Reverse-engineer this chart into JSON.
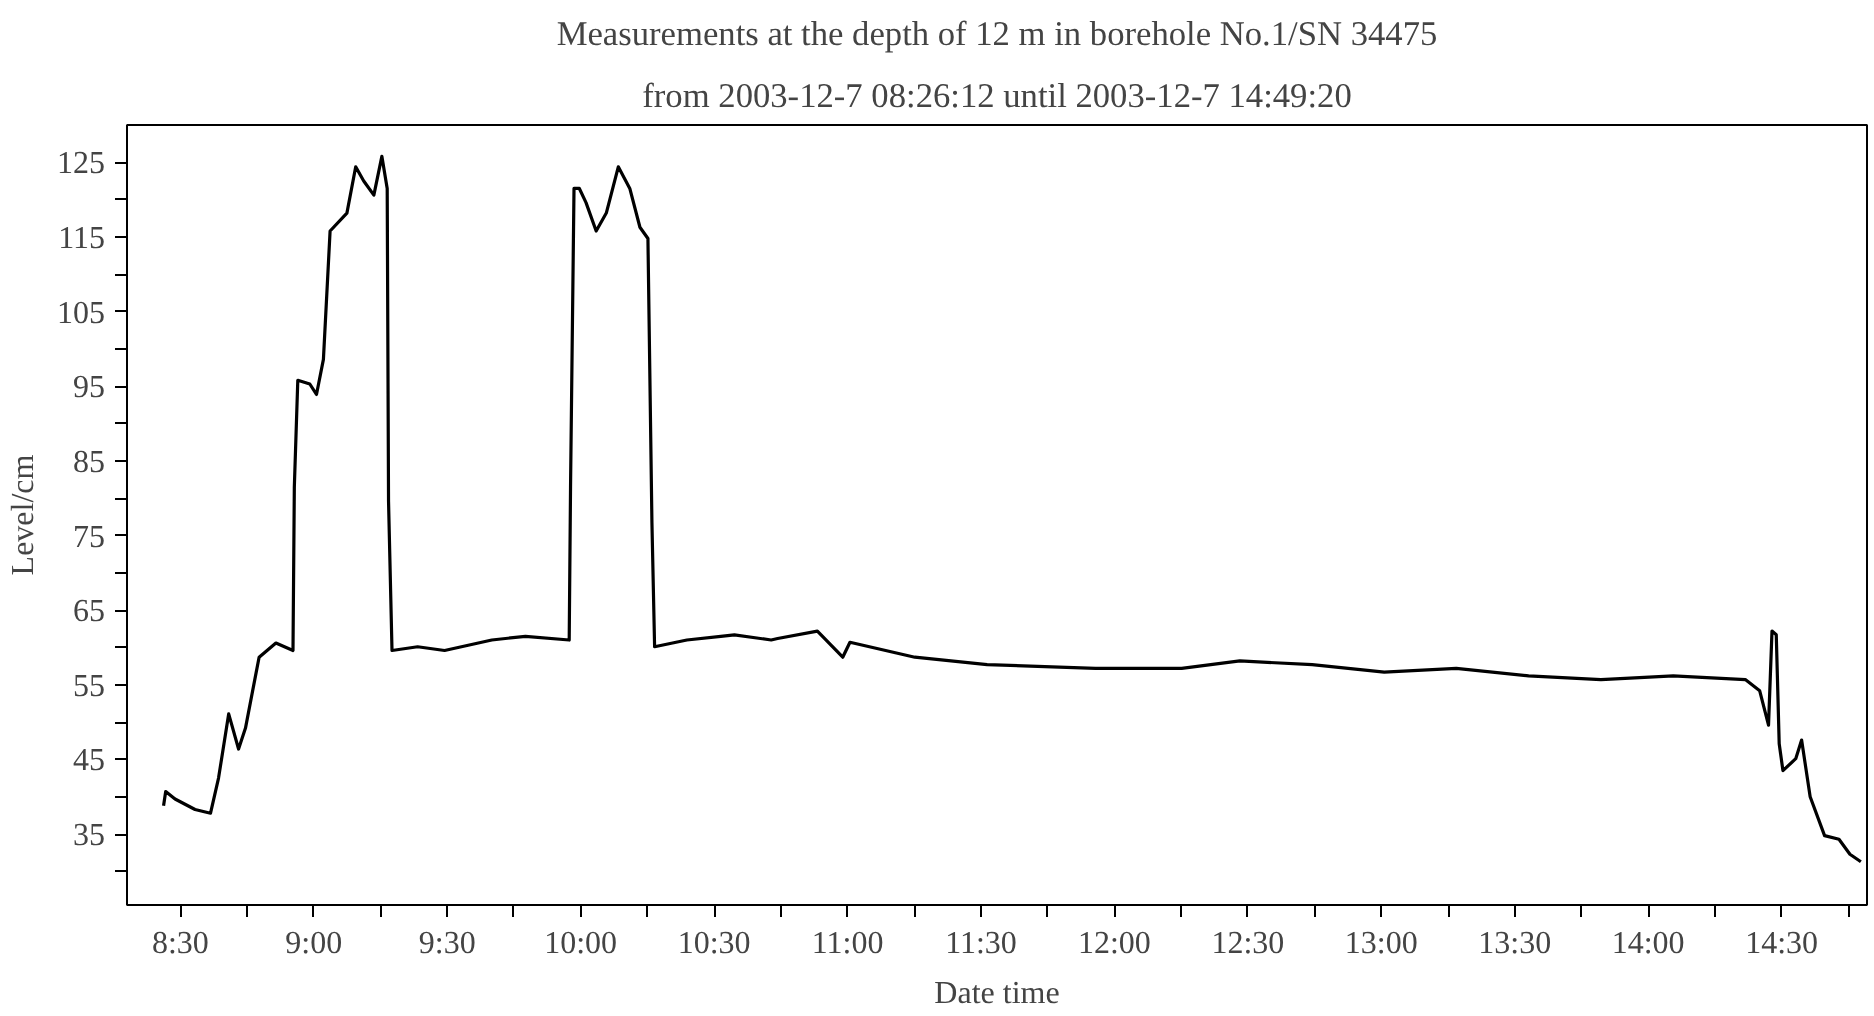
{
  "chart_data": {
    "type": "line",
    "title": "Measurements at the depth of 12 m in borehole No.1/SN 34475",
    "subtitle": "from 2003-12-7 08:26:12 until 2003-12-7 14:49:20",
    "xlabel": "Date time",
    "ylabel": "Level/cm",
    "series": [
      {
        "color": "#000000",
        "x": [
          8.437,
          8.445,
          8.48,
          8.555,
          8.613,
          8.643,
          8.681,
          8.718,
          8.744,
          8.795,
          8.858,
          8.922,
          8.927,
          8.94,
          8.985,
          9.01,
          9.036,
          9.061,
          9.124,
          9.157,
          9.187,
          9.225,
          9.255,
          9.275,
          9.28,
          9.293,
          9.389,
          9.49,
          9.667,
          9.793,
          9.957,
          9.962,
          9.975,
          9.995,
          10.02,
          10.058,
          10.096,
          10.141,
          10.184,
          10.222,
          10.252,
          10.267,
          10.277,
          10.398,
          10.525,
          10.576,
          10.714,
          10.738,
          10.887,
          10.982,
          11.009,
          11.252,
          11.523,
          11.929,
          12.252,
          12.47,
          12.741,
          13.011,
          13.281,
          13.552,
          13.823,
          14.094,
          14.364,
          14.418,
          14.451,
          14.464,
          14.48,
          14.491,
          14.505,
          14.553,
          14.575,
          14.607,
          14.661,
          14.715,
          14.756,
          14.797
        ],
        "values": [
          38.8,
          40.7,
          39.7,
          38.3,
          37.8,
          42.5,
          51.1,
          46.4,
          49.2,
          58.7,
          60.6,
          59.6,
          81.5,
          95.8,
          95.3,
          93.9,
          98.6,
          115.8,
          118.2,
          124.4,
          122.5,
          120.6,
          125.8,
          121.5,
          79.6,
          59.6,
          60.1,
          59.6,
          61.0,
          61.5,
          61.0,
          81.5,
          121.5,
          121.5,
          119.6,
          115.8,
          118.2,
          124.4,
          121.5,
          116.3,
          114.8,
          76.7,
          60.1,
          61.0,
          61.5,
          61.7,
          61.0,
          61.2,
          62.2,
          58.7,
          60.7,
          58.7,
          57.7,
          57.2,
          57.2,
          58.2,
          57.7,
          56.7,
          57.2,
          56.2,
          55.7,
          56.2,
          55.7,
          54.2,
          49.6,
          62.2,
          61.7,
          47.1,
          43.5,
          45.1,
          47.6,
          40.0,
          34.8,
          34.3,
          32.3,
          31.3
        ]
      }
    ],
    "xlim": [
      8.3,
      14.82
    ],
    "ylim": [
      25.5,
      130
    ],
    "xticks": [
      {
        "value": 8.5,
        "label": "8:30"
      },
      {
        "value": 8.75,
        "label": null
      },
      {
        "value": 9,
        "label": "9:00"
      },
      {
        "value": 9.25,
        "label": null
      },
      {
        "value": 9.5,
        "label": "9:30"
      },
      {
        "value": 9.75,
        "label": null
      },
      {
        "value": 10,
        "label": "10:00"
      },
      {
        "value": 10.25,
        "label": null
      },
      {
        "value": 10.5,
        "label": "10:30"
      },
      {
        "value": 10.75,
        "label": null
      },
      {
        "value": 11,
        "label": "11:00"
      },
      {
        "value": 11.25,
        "label": null
      },
      {
        "value": 11.5,
        "label": "11:30"
      },
      {
        "value": 11.75,
        "label": null
      },
      {
        "value": 12,
        "label": "12:00"
      },
      {
        "value": 12.25,
        "label": null
      },
      {
        "value": 12.5,
        "label": "12:30"
      },
      {
        "value": 12.75,
        "label": null
      },
      {
        "value": 13,
        "label": "13:00"
      },
      {
        "value": 13.25,
        "label": null
      },
      {
        "value": 13.5,
        "label": "13:30"
      },
      {
        "value": 13.75,
        "label": null
      },
      {
        "value": 14,
        "label": "14:00"
      },
      {
        "value": 14.25,
        "label": null
      },
      {
        "value": 14.5,
        "label": "14:30"
      },
      {
        "value": 14.75,
        "label": null
      }
    ],
    "yticks": [
      {
        "value": 30,
        "label": null
      },
      35,
      {
        "value": 40,
        "label": null
      },
      45,
      {
        "value": 50,
        "label": null
      },
      55,
      {
        "value": 60,
        "label": null
      },
      65,
      {
        "value": 70,
        "label": null
      },
      75,
      {
        "value": 80,
        "label": null
      },
      85,
      {
        "value": 90,
        "label": null
      },
      95,
      {
        "value": 100,
        "label": null
      },
      105,
      {
        "value": 110,
        "label": null
      },
      115,
      {
        "value": 120,
        "label": null
      },
      125
    ],
    "grid": false,
    "marker": "none",
    "line_style": "solid"
  }
}
